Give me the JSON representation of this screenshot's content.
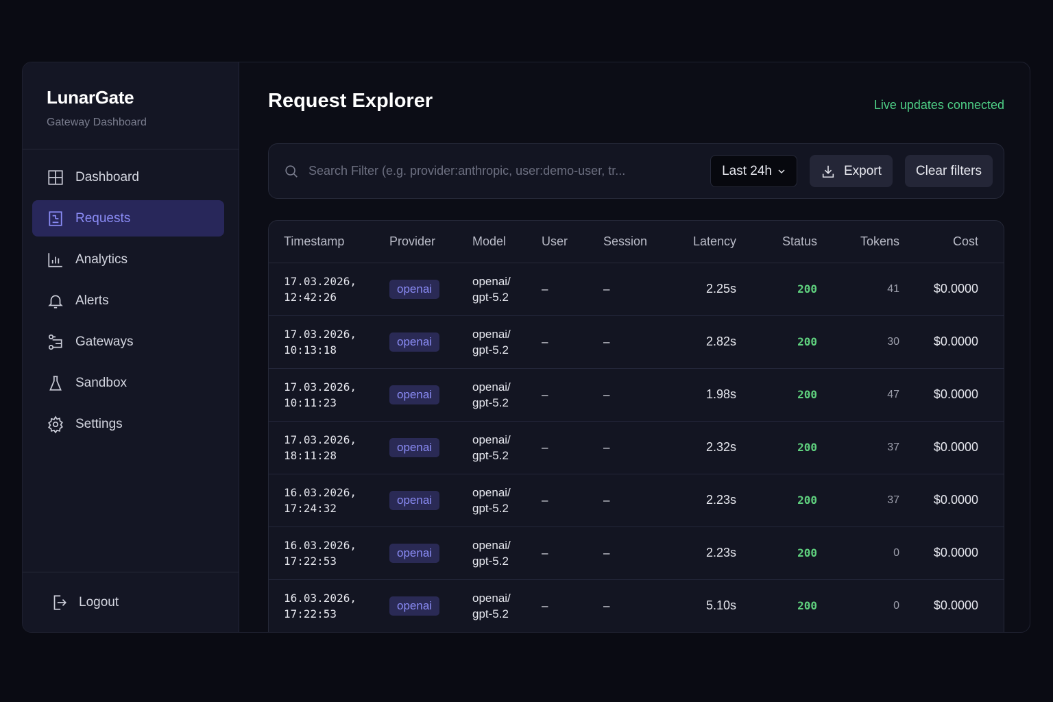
{
  "brand": {
    "title": "LunarGate",
    "subtitle": "Gateway Dashboard"
  },
  "nav": [
    {
      "label": "Dashboard",
      "icon": "grid-icon"
    },
    {
      "label": "Requests",
      "icon": "list-icon",
      "active": true
    },
    {
      "label": "Analytics",
      "icon": "bar-chart-icon"
    },
    {
      "label": "Alerts",
      "icon": "bell-icon"
    },
    {
      "label": "Gateways",
      "icon": "gateway-icon"
    },
    {
      "label": "Sandbox",
      "icon": "flask-icon"
    },
    {
      "label": "Settings",
      "icon": "gear-icon"
    }
  ],
  "logout": "Logout",
  "page_title": "Request Explorer",
  "live_status": "Live updates connected",
  "colors": {
    "accent": "#8b8cf6",
    "live": "#4ecf86",
    "status_ok": "#5fd07e"
  },
  "filter": {
    "placeholder": "Search Filter (e.g. provider:anthropic, user:demo-user, tr...",
    "value": "",
    "range": "Last 24h",
    "export": "Export",
    "clear": "Clear filters"
  },
  "table": {
    "columns": [
      "Timestamp",
      "Provider",
      "Model",
      "User",
      "Session",
      "Latency",
      "Status",
      "Tokens",
      "Cost"
    ],
    "rows": [
      {
        "date": "17.03.2026,",
        "time": "12:42:26",
        "provider": "openai",
        "model1": "openai/",
        "model2": "gpt-5.2",
        "user": "–",
        "session": "–",
        "latency": "2.25s",
        "status": "200",
        "tokens": "41",
        "cost": "$0.0000"
      },
      {
        "date": "17.03.2026,",
        "time": "10:13:18",
        "provider": "openai",
        "model1": "openai/",
        "model2": "gpt-5.2",
        "user": "–",
        "session": "–",
        "latency": "2.82s",
        "status": "200",
        "tokens": "30",
        "cost": "$0.0000"
      },
      {
        "date": "17.03.2026,",
        "time": "10:11:23",
        "provider": "openai",
        "model1": "openai/",
        "model2": "gpt-5.2",
        "user": "–",
        "session": "–",
        "latency": "1.98s",
        "status": "200",
        "tokens": "47",
        "cost": "$0.0000"
      },
      {
        "date": "17.03.2026,",
        "time": "18:11:28",
        "provider": "openai",
        "model1": "openai/",
        "model2": "gpt-5.2",
        "user": "–",
        "session": "–",
        "latency": "2.32s",
        "status": "200",
        "tokens": "37",
        "cost": "$0.0000"
      },
      {
        "date": "16.03.2026,",
        "time": "17:24:32",
        "provider": "openai",
        "model1": "openai/",
        "model2": "gpt-5.2",
        "user": "–",
        "session": "–",
        "latency": "2.23s",
        "status": "200",
        "tokens": "37",
        "cost": "$0.0000"
      },
      {
        "date": "16.03.2026,",
        "time": "17:22:53",
        "provider": "openai",
        "model1": "openai/",
        "model2": "gpt-5.2",
        "user": "–",
        "session": "–",
        "latency": "2.23s",
        "status": "200",
        "tokens": "0",
        "cost": "$0.0000"
      },
      {
        "date": "16.03.2026,",
        "time": "17:22:53",
        "provider": "openai",
        "model1": "openai/",
        "model2": "gpt-5.2",
        "user": "–",
        "session": "–",
        "latency": "5.10s",
        "status": "200",
        "tokens": "0",
        "cost": "$0.0000"
      }
    ]
  }
}
